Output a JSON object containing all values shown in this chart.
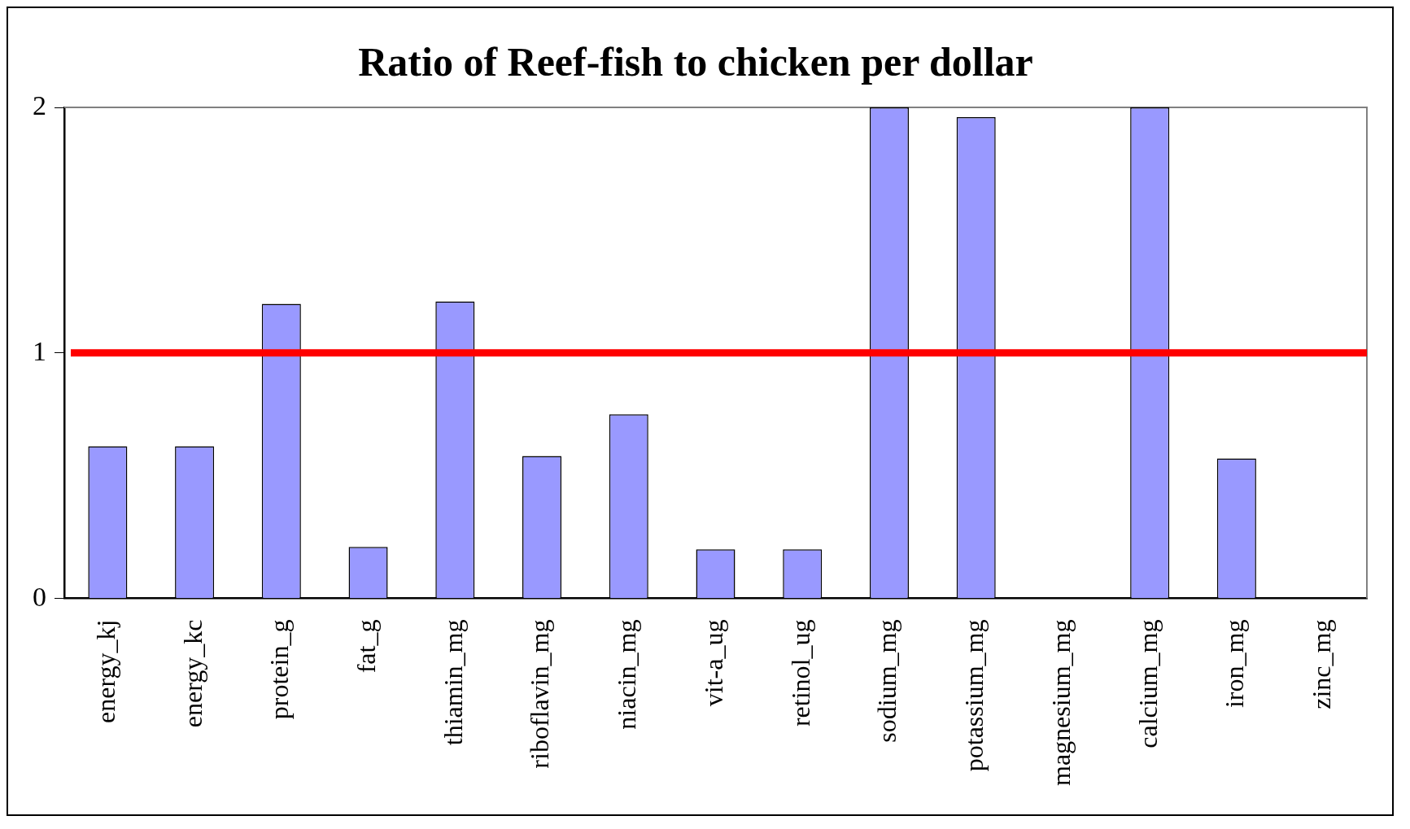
{
  "chart_data": {
    "type": "bar",
    "title": "Ratio of Reef-fish to chicken per dollar",
    "categories": [
      "energy_kj",
      "energy_kc",
      "protein_g",
      "fat_g",
      "thiamin_mg",
      "riboflavin_mg",
      "niacin_mg",
      "vit-a_ug",
      "retinol_ug",
      "sodium_mg",
      "potassium_mg",
      "magnesium_mg",
      "calcium_mg",
      "iron_mg",
      "zinc_mg"
    ],
    "values": [
      0.62,
      0.62,
      1.2,
      0.21,
      1.21,
      0.58,
      0.75,
      0.2,
      0.2,
      2,
      1.96,
      null,
      2,
      0.57,
      null
    ],
    "color": "#9999ff",
    "ylim": [
      0,
      2
    ],
    "yticks": [
      0,
      1,
      2
    ],
    "grid": false,
    "legend": false,
    "ref_lines": [
      {
        "axis": "y",
        "value": 1,
        "color": "#ff0000"
      }
    ]
  }
}
